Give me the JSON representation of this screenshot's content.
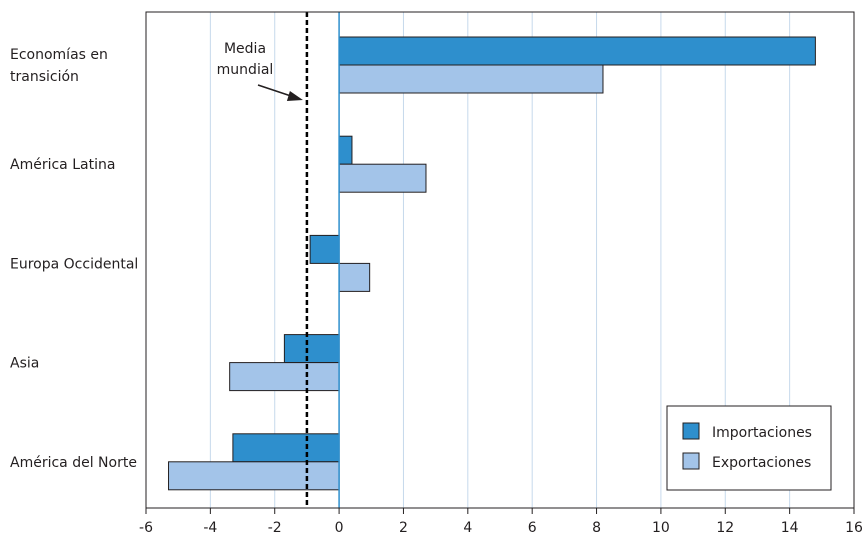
{
  "chart_data": {
    "type": "bar",
    "orientation": "horizontal",
    "categories": [
      "Economías en transición",
      "América Latina",
      "Europa Occidental",
      "Asia",
      "América del Norte"
    ],
    "series": [
      {
        "name": "Importaciones",
        "values": [
          14.8,
          0.4,
          -0.9,
          -1.7,
          -3.3
        ]
      },
      {
        "name": "Exportaciones",
        "values": [
          8.2,
          2.7,
          0.95,
          -3.4,
          -5.3
        ]
      }
    ],
    "xlim": [
      -6,
      16
    ],
    "xticks": [
      -6,
      -4,
      -2,
      0,
      2,
      4,
      6,
      8,
      10,
      12,
      14,
      16
    ],
    "grid": "vertical",
    "reference_line": {
      "value": -1,
      "label_line1": "Media",
      "label_line2": "mundial"
    },
    "legend": "bottom-right",
    "colors": {
      "importaciones": "#2e8fcd",
      "exportaciones": "#a3c4e9",
      "grid": "#c6d9ec",
      "zero_line": "#2e8fcd",
      "outline": "#231f20"
    }
  }
}
